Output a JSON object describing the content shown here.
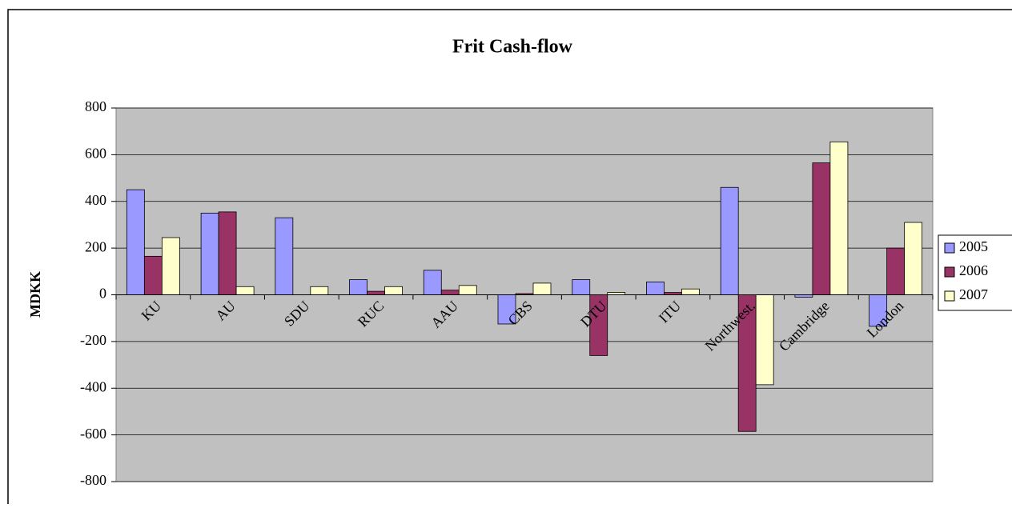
{
  "chart_data": {
    "type": "bar",
    "title": "Frit Cash-flow",
    "y_label": "MDKK",
    "categories": [
      "KU",
      "AU",
      "SDU",
      "RUC",
      "AAU",
      "CBS",
      "DTU",
      "ITU",
      "Northwest.",
      "Cambridge",
      "London"
    ],
    "series": [
      {
        "name": "2005",
        "color": "#9999ff",
        "values": [
          450,
          350,
          330,
          65,
          105,
          -125,
          65,
          55,
          460,
          -10,
          -135
        ]
      },
      {
        "name": "2006",
        "color": "#993366",
        "values": [
          165,
          355,
          0,
          15,
          20,
          5,
          -260,
          10,
          -585,
          565,
          200
        ]
      },
      {
        "name": "2007",
        "color": "#ffffcc",
        "values": [
          245,
          35,
          35,
          35,
          40,
          50,
          10,
          25,
          -385,
          655,
          310
        ]
      }
    ],
    "ylim": [
      -800,
      800
    ],
    "yticks": [
      -800,
      -600,
      -400,
      -200,
      0,
      200,
      400,
      600,
      800
    ],
    "grid": true,
    "legend": "right"
  }
}
